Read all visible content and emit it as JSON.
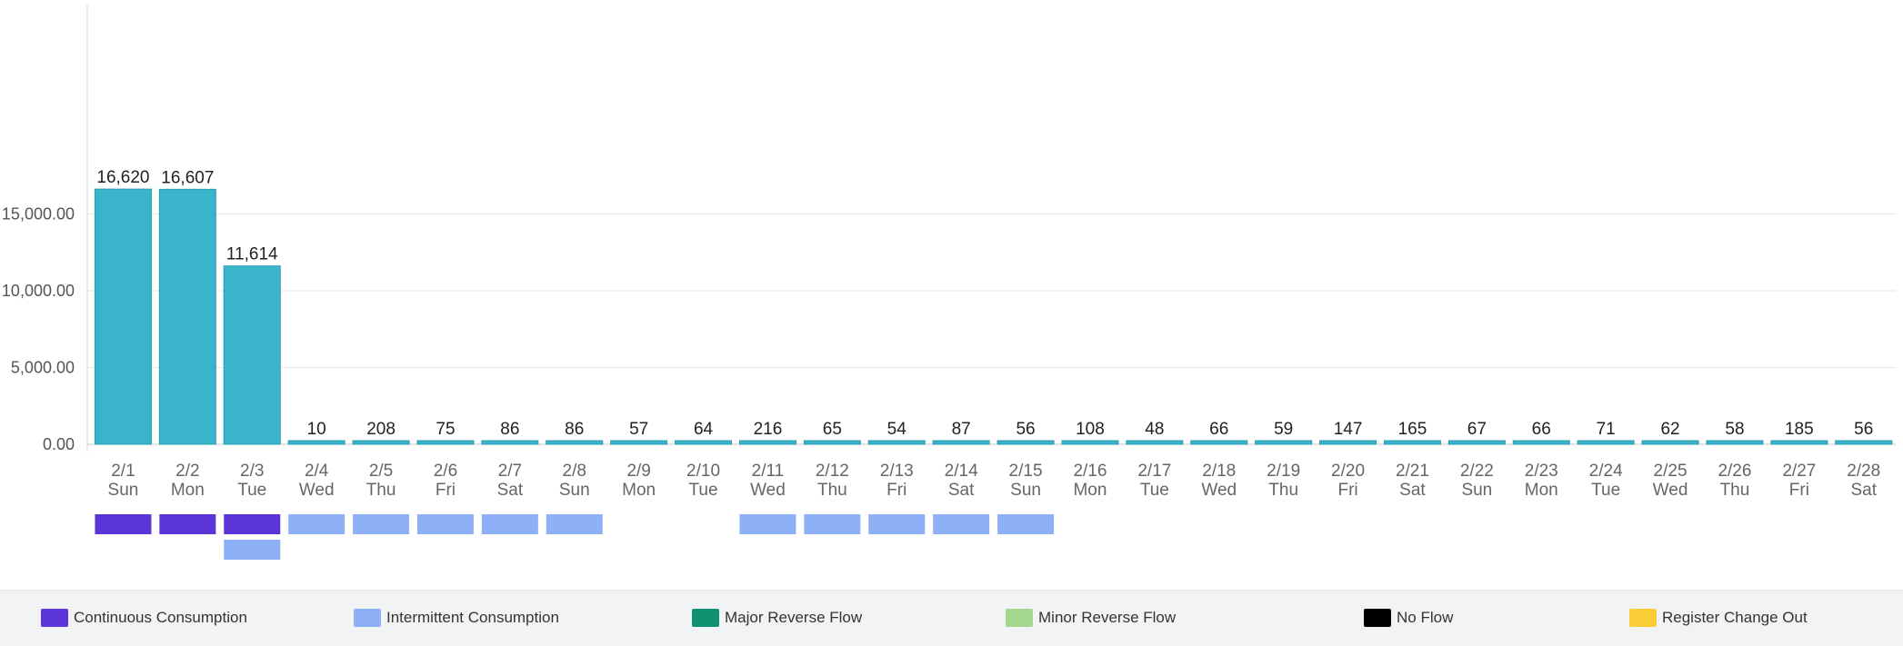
{
  "chart_data": {
    "type": "bar",
    "categories": [
      {
        "date": "2/1",
        "day": "Sun"
      },
      {
        "date": "2/2",
        "day": "Mon"
      },
      {
        "date": "2/3",
        "day": "Tue"
      },
      {
        "date": "2/4",
        "day": "Wed"
      },
      {
        "date": "2/5",
        "day": "Thu"
      },
      {
        "date": "2/6",
        "day": "Fri"
      },
      {
        "date": "2/7",
        "day": "Sat"
      },
      {
        "date": "2/8",
        "day": "Sun"
      },
      {
        "date": "2/9",
        "day": "Mon"
      },
      {
        "date": "2/10",
        "day": "Tue"
      },
      {
        "date": "2/11",
        "day": "Wed"
      },
      {
        "date": "2/12",
        "day": "Thu"
      },
      {
        "date": "2/13",
        "day": "Fri"
      },
      {
        "date": "2/14",
        "day": "Sat"
      },
      {
        "date": "2/15",
        "day": "Sun"
      },
      {
        "date": "2/16",
        "day": "Mon"
      },
      {
        "date": "2/17",
        "day": "Tue"
      },
      {
        "date": "2/18",
        "day": "Wed"
      },
      {
        "date": "2/19",
        "day": "Thu"
      },
      {
        "date": "2/20",
        "day": "Fri"
      },
      {
        "date": "2/21",
        "day": "Sat"
      },
      {
        "date": "2/22",
        "day": "Sun"
      },
      {
        "date": "2/23",
        "day": "Mon"
      },
      {
        "date": "2/24",
        "day": "Tue"
      },
      {
        "date": "2/25",
        "day": "Wed"
      },
      {
        "date": "2/26",
        "day": "Thu"
      },
      {
        "date": "2/27",
        "day": "Fri"
      },
      {
        "date": "2/28",
        "day": "Sat"
      }
    ],
    "values": [
      16620,
      16607,
      11614,
      10,
      208,
      75,
      86,
      86,
      57,
      64,
      216,
      65,
      54,
      87,
      56,
      108,
      48,
      66,
      59,
      147,
      165,
      67,
      66,
      71,
      62,
      58,
      185,
      56
    ],
    "value_labels": [
      "16,620",
      "16,607",
      "11,614",
      "10",
      "208",
      "75",
      "86",
      "86",
      "57",
      "64",
      "216",
      "65",
      "54",
      "87",
      "56",
      "108",
      "48",
      "66",
      "59",
      "147",
      "165",
      "67",
      "66",
      "71",
      "62",
      "58",
      "185",
      "56"
    ],
    "yticks": [
      {
        "value": 0,
        "label": "0.00"
      },
      {
        "value": 5000,
        "label": "5,000.00"
      },
      {
        "value": 10000,
        "label": "10,000.00"
      },
      {
        "value": 15000,
        "label": "15,000.00"
      }
    ],
    "ylim": [
      0,
      20000
    ],
    "grid": true,
    "bar_color": "#3ab4cb",
    "status_rows": [
      [
        "Continuous Consumption",
        "Continuous Consumption",
        "Continuous Consumption",
        "Intermittent Consumption",
        "Intermittent Consumption",
        "Intermittent Consumption",
        "Intermittent Consumption",
        "Intermittent Consumption",
        null,
        null,
        "Intermittent Consumption",
        "Intermittent Consumption",
        "Intermittent Consumption",
        "Intermittent Consumption",
        "Intermittent Consumption",
        null,
        null,
        null,
        null,
        null,
        null,
        null,
        null,
        null,
        null,
        null,
        null,
        null
      ],
      [
        null,
        null,
        "Intermittent Consumption",
        null,
        null,
        null,
        null,
        null,
        null,
        null,
        null,
        null,
        null,
        null,
        null,
        null,
        null,
        null,
        null,
        null,
        null,
        null,
        null,
        null,
        null,
        null,
        null,
        null
      ]
    ]
  },
  "legend": [
    {
      "label": "Continuous Consumption",
      "color": "#5b35d5"
    },
    {
      "label": "Intermittent Consumption",
      "color": "#8eb0f7"
    },
    {
      "label": "Major Reverse Flow",
      "color": "#109272"
    },
    {
      "label": "Minor Reverse Flow",
      "color": "#a3d98f"
    },
    {
      "label": "No Flow",
      "color": "#000000"
    },
    {
      "label": "Register Change Out",
      "color": "#f9cd36"
    }
  ]
}
